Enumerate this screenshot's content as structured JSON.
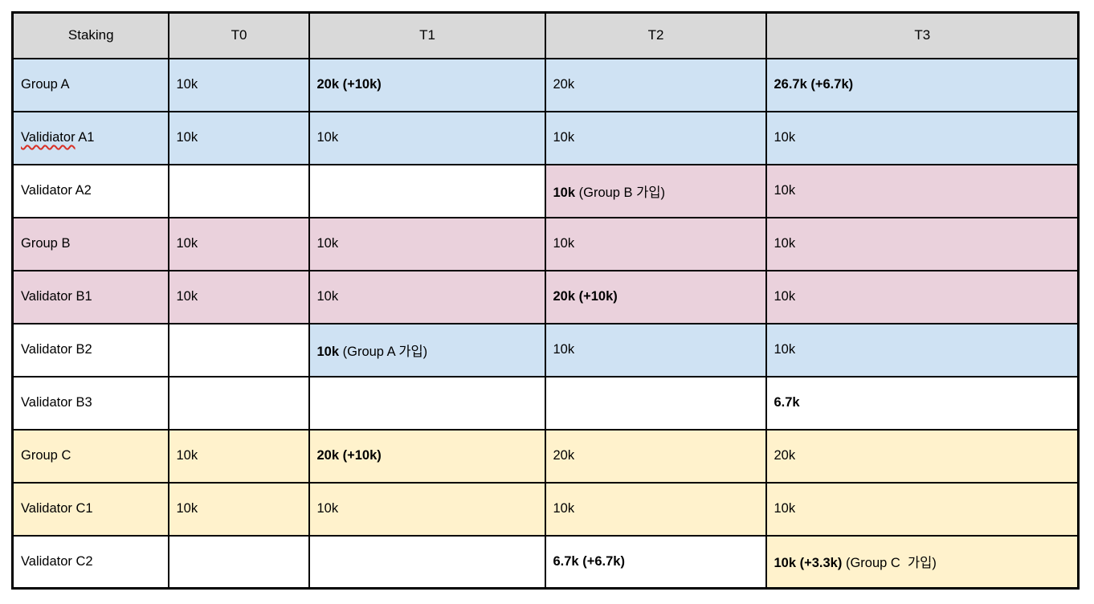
{
  "palette": {
    "header": "#d9d9d9",
    "blue": "#cfe2f3",
    "pink": "#ead1dc",
    "yellow": "#fff2cc",
    "white": "#ffffff",
    "border": "#000000",
    "text": "#000000",
    "squiggle_red": "#d93025"
  },
  "table": {
    "columns": [
      {
        "label": "Staking"
      },
      {
        "label": "T0"
      },
      {
        "label": "T1"
      },
      {
        "label": "T2"
      },
      {
        "label": "T3"
      }
    ],
    "rows": [
      {
        "label": "Group A",
        "label_bg": "blue",
        "misspelled": "",
        "cells": [
          {
            "bold": "",
            "text": "10k",
            "bg": "blue"
          },
          {
            "bold": "20k (+10k)",
            "text": "",
            "bg": "blue"
          },
          {
            "bold": "",
            "text": "20k",
            "bg": "blue"
          },
          {
            "bold": "26.7k (+6.7k)",
            "text": "",
            "bg": "blue"
          }
        ]
      },
      {
        "label": "Validiator A1",
        "label_bg": "blue",
        "misspelled": "Validiator",
        "cells": [
          {
            "bold": "",
            "text": "10k",
            "bg": "blue"
          },
          {
            "bold": "",
            "text": "10k",
            "bg": "blue"
          },
          {
            "bold": "",
            "text": "10k",
            "bg": "blue"
          },
          {
            "bold": "",
            "text": "10k",
            "bg": "blue"
          }
        ]
      },
      {
        "label": "Validator A2",
        "label_bg": "white",
        "misspelled": "",
        "cells": [
          {
            "bold": "",
            "text": "",
            "bg": "white"
          },
          {
            "bold": "",
            "text": "",
            "bg": "white"
          },
          {
            "bold": "10k",
            "text": " (Group B 가입)",
            "bg": "pink"
          },
          {
            "bold": "",
            "text": "10k",
            "bg": "pink"
          }
        ]
      },
      {
        "label": "Group B",
        "label_bg": "pink",
        "misspelled": "",
        "cells": [
          {
            "bold": "",
            "text": "10k",
            "bg": "pink"
          },
          {
            "bold": "",
            "text": "10k",
            "bg": "pink"
          },
          {
            "bold": "",
            "text": "10k",
            "bg": "pink"
          },
          {
            "bold": "",
            "text": "10k",
            "bg": "pink"
          }
        ]
      },
      {
        "label": "Validator B1",
        "label_bg": "pink",
        "misspelled": "",
        "cells": [
          {
            "bold": "",
            "text": "10k",
            "bg": "pink"
          },
          {
            "bold": "",
            "text": "10k",
            "bg": "pink"
          },
          {
            "bold": "20k (+10k)",
            "text": "",
            "bg": "pink"
          },
          {
            "bold": "",
            "text": "10k",
            "bg": "pink"
          }
        ]
      },
      {
        "label": "Validator B2",
        "label_bg": "white",
        "misspelled": "",
        "cells": [
          {
            "bold": "",
            "text": "",
            "bg": "white"
          },
          {
            "bold": "10k",
            "text": " (Group A 가입)",
            "bg": "blue"
          },
          {
            "bold": "",
            "text": "10k",
            "bg": "blue"
          },
          {
            "bold": "",
            "text": "10k",
            "bg": "blue"
          }
        ]
      },
      {
        "label": "Validator B3",
        "label_bg": "white",
        "misspelled": "",
        "cells": [
          {
            "bold": "",
            "text": "",
            "bg": "white"
          },
          {
            "bold": "",
            "text": "",
            "bg": "white"
          },
          {
            "bold": "",
            "text": "",
            "bg": "white"
          },
          {
            "bold": "6.7k",
            "text": "",
            "bg": "white"
          }
        ]
      },
      {
        "label": "Group C",
        "label_bg": "yellow",
        "misspelled": "",
        "cells": [
          {
            "bold": "",
            "text": "10k",
            "bg": "yellow"
          },
          {
            "bold": "20k (+10k)",
            "text": "",
            "bg": "yellow"
          },
          {
            "bold": "",
            "text": "20k",
            "bg": "yellow"
          },
          {
            "bold": "",
            "text": "20k",
            "bg": "yellow"
          }
        ]
      },
      {
        "label": "Validator C1",
        "label_bg": "yellow",
        "misspelled": "",
        "cells": [
          {
            "bold": "",
            "text": "10k",
            "bg": "yellow"
          },
          {
            "bold": "",
            "text": "10k",
            "bg": "yellow"
          },
          {
            "bold": "",
            "text": "10k",
            "bg": "yellow"
          },
          {
            "bold": "",
            "text": "10k",
            "bg": "yellow"
          }
        ]
      },
      {
        "label": "Validator C2",
        "label_bg": "white",
        "misspelled": "",
        "cells": [
          {
            "bold": "",
            "text": "",
            "bg": "white"
          },
          {
            "bold": "",
            "text": "",
            "bg": "white"
          },
          {
            "bold": "6.7k (+6.7k)",
            "text": "",
            "bg": "white"
          },
          {
            "bold": "10k (+3.3k)",
            "text": " (Group C  가입)",
            "bg": "yellow"
          }
        ]
      }
    ]
  }
}
